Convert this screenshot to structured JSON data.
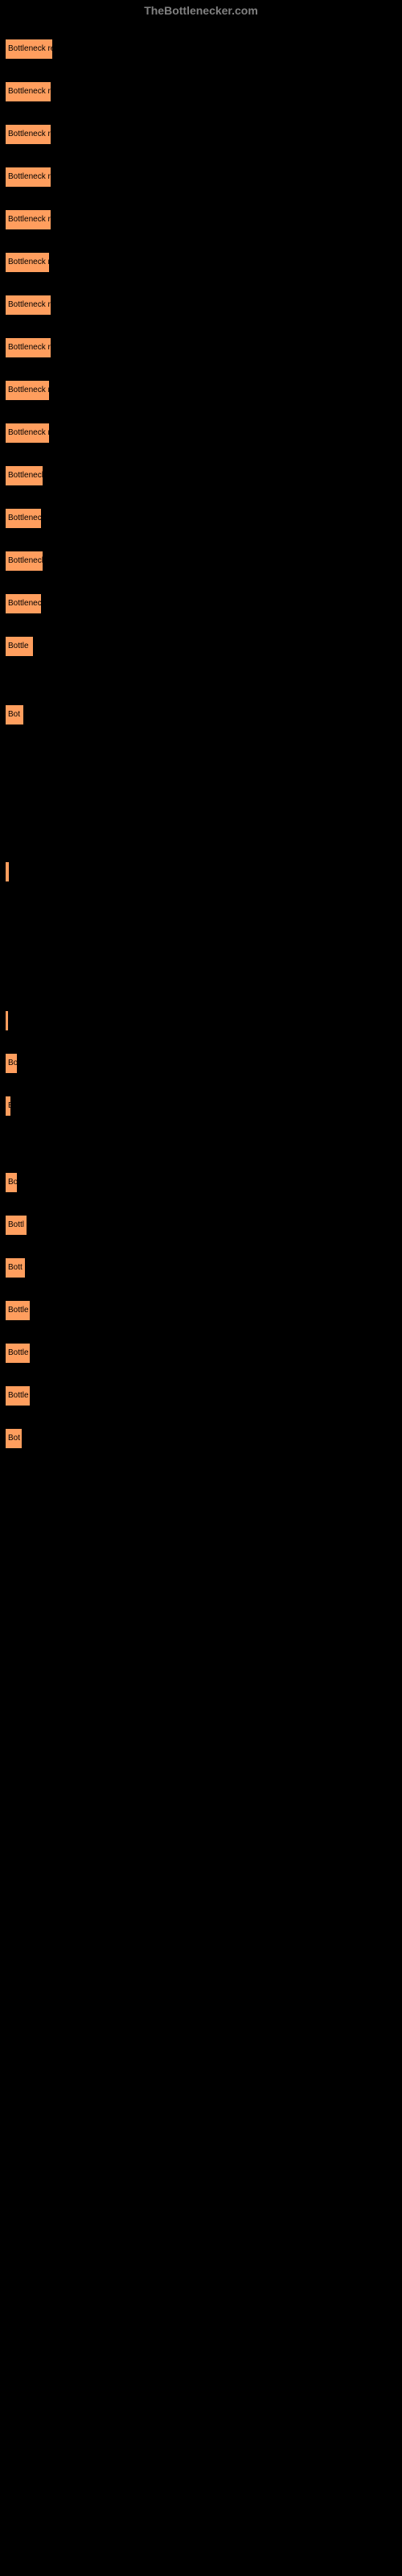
{
  "header": {
    "title": "TheBottlenecker.com"
  },
  "chart": {
    "type": "bar",
    "background_color": "#000000",
    "bar_color": "#ff9e5e",
    "bar_border_color": "#000000",
    "text_color": "#000000",
    "full_label": "Bottleneck result",
    "bars": [
      {
        "width": 62,
        "label": "Bottleneck res"
      },
      {
        "width": 60,
        "label": "Bottleneck re"
      },
      {
        "width": 60,
        "label": "Bottleneck re"
      },
      {
        "width": 60,
        "label": "Bottleneck re"
      },
      {
        "width": 60,
        "label": "Bottleneck re"
      },
      {
        "width": 58,
        "label": "Bottleneck r"
      },
      {
        "width": 60,
        "label": "Bottleneck re"
      },
      {
        "width": 60,
        "label": "Bottleneck re"
      },
      {
        "width": 58,
        "label": "Bottleneck r"
      },
      {
        "width": 58,
        "label": "Bottleneck r"
      },
      {
        "width": 50,
        "label": "Bottleneck"
      },
      {
        "width": 48,
        "label": "Bottlenec"
      },
      {
        "width": 50,
        "label": "Bottleneck"
      },
      {
        "width": 48,
        "label": "Bottlenec"
      },
      {
        "width": 38,
        "label": "Bottle"
      },
      {
        "width": 26,
        "label": "Bot"
      },
      {
        "width": 8,
        "label": ""
      },
      {
        "width": 3,
        "label": ""
      },
      {
        "width": 18,
        "label": "Bo"
      },
      {
        "width": 10,
        "label": "B"
      },
      {
        "width": 18,
        "label": "Bo"
      },
      {
        "width": 30,
        "label": "Bottl"
      },
      {
        "width": 28,
        "label": "Bott"
      },
      {
        "width": 34,
        "label": "Bottle"
      },
      {
        "width": 34,
        "label": "Bottle"
      },
      {
        "width": 34,
        "label": "Bottle"
      },
      {
        "width": 24,
        "label": "Bot"
      }
    ],
    "row_gaps": [
      0,
      0,
      0,
      0,
      0,
      0,
      0,
      0,
      0,
      0,
      0,
      0,
      0,
      0,
      0,
      40,
      150,
      140,
      0,
      0,
      50,
      0,
      0,
      0,
      0,
      0,
      0
    ]
  }
}
